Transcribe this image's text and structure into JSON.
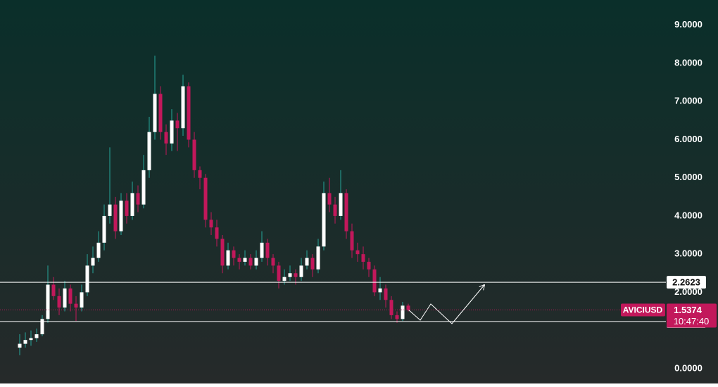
{
  "chart_data": {
    "type": "candlestick",
    "symbol": "AVICIUSD",
    "last_price": 1.5374,
    "countdown": "10:47:40",
    "levels": [
      2.2623,
      1.2349
    ],
    "up_color": "#ffffff",
    "down_color": "#c2185b",
    "wick_color": "#26a69a",
    "ylim": [
      -0.39,
      9.66
    ],
    "yticks": [
      {
        "value": 0,
        "label": "0.0000"
      },
      {
        "value": 2,
        "label": "2.0000"
      },
      {
        "value": 3,
        "label": "3.0000"
      },
      {
        "value": 4,
        "label": "4.0000"
      },
      {
        "value": 5,
        "label": "5.0000"
      },
      {
        "value": 6,
        "label": "6.0000"
      },
      {
        "value": 7,
        "label": "7.0000"
      },
      {
        "value": 8,
        "label": "8.0000"
      },
      {
        "value": 9,
        "label": "9.0000"
      }
    ],
    "ohlc": [
      [
        0.55,
        0.9,
        0.35,
        0.65
      ],
      [
        0.65,
        0.95,
        0.55,
        0.75
      ],
      [
        0.75,
        1.0,
        0.6,
        0.8
      ],
      [
        0.8,
        1.05,
        0.7,
        0.9
      ],
      [
        0.9,
        1.4,
        0.85,
        1.3
      ],
      [
        1.3,
        2.7,
        1.2,
        2.2
      ],
      [
        2.2,
        2.4,
        1.8,
        1.9
      ],
      [
        1.9,
        2.1,
        1.4,
        1.6
      ],
      [
        1.6,
        2.3,
        1.5,
        2.1
      ],
      [
        2.1,
        2.2,
        1.5,
        1.7
      ],
      [
        1.7,
        1.9,
        1.25,
        1.6
      ],
      [
        1.6,
        2.2,
        1.5,
        2.0
      ],
      [
        2.0,
        3.0,
        1.9,
        2.7
      ],
      [
        2.7,
        3.2,
        2.5,
        2.9
      ],
      [
        2.9,
        3.6,
        2.8,
        3.3
      ],
      [
        3.3,
        4.3,
        3.1,
        4.0
      ],
      [
        4.0,
        5.8,
        3.8,
        4.3
      ],
      [
        4.3,
        4.5,
        3.4,
        3.6
      ],
      [
        3.6,
        4.6,
        3.5,
        4.4
      ],
      [
        4.4,
        4.6,
        3.8,
        4.0
      ],
      [
        4.0,
        4.9,
        3.9,
        4.6
      ],
      [
        4.6,
        4.8,
        4.1,
        4.3
      ],
      [
        4.3,
        5.6,
        4.2,
        5.2
      ],
      [
        5.2,
        6.6,
        5.0,
        6.2
      ],
      [
        6.2,
        8.2,
        6.0,
        7.2
      ],
      [
        7.2,
        7.4,
        6.0,
        6.2
      ],
      [
        6.2,
        6.4,
        5.6,
        5.9
      ],
      [
        5.9,
        6.8,
        5.7,
        6.5
      ],
      [
        6.5,
        6.7,
        5.7,
        6.3
      ],
      [
        6.3,
        7.7,
        6.1,
        7.4
      ],
      [
        7.4,
        7.5,
        5.8,
        6.0
      ],
      [
        6.0,
        6.2,
        5.0,
        5.2
      ],
      [
        5.2,
        5.3,
        4.7,
        5.0
      ],
      [
        5.0,
        5.1,
        3.7,
        3.9
      ],
      [
        3.9,
        4.1,
        3.5,
        3.7
      ],
      [
        3.7,
        3.9,
        3.2,
        3.4
      ],
      [
        3.4,
        3.5,
        2.5,
        2.7
      ],
      [
        2.7,
        3.3,
        2.6,
        3.1
      ],
      [
        3.1,
        3.2,
        2.7,
        2.9
      ],
      [
        2.9,
        3.0,
        2.6,
        2.8
      ],
      [
        2.8,
        3.1,
        2.7,
        2.9
      ],
      [
        2.9,
        3.0,
        2.6,
        2.7
      ],
      [
        2.7,
        3.1,
        2.6,
        2.9
      ],
      [
        2.9,
        3.6,
        2.8,
        3.3
      ],
      [
        3.3,
        3.4,
        2.7,
        2.9
      ],
      [
        2.9,
        3.0,
        2.5,
        2.7
      ],
      [
        2.7,
        2.8,
        2.1,
        2.3
      ],
      [
        2.3,
        2.6,
        2.2,
        2.4
      ],
      [
        2.4,
        2.7,
        2.3,
        2.5
      ],
      [
        2.5,
        2.6,
        2.2,
        2.4
      ],
      [
        2.4,
        2.9,
        2.3,
        2.7
      ],
      [
        2.7,
        3.1,
        2.6,
        2.9
      ],
      [
        2.9,
        3.0,
        2.4,
        2.6
      ],
      [
        2.6,
        3.4,
        2.5,
        3.2
      ],
      [
        3.2,
        4.9,
        3.1,
        4.6
      ],
      [
        4.6,
        5.0,
        4.1,
        4.3
      ],
      [
        4.3,
        4.5,
        3.8,
        4.0
      ],
      [
        4.0,
        5.2,
        3.9,
        4.6
      ],
      [
        4.6,
        4.7,
        3.4,
        3.6
      ],
      [
        3.6,
        3.8,
        2.9,
        3.1
      ],
      [
        3.1,
        3.3,
        2.8,
        3.0
      ],
      [
        3.0,
        3.2,
        2.6,
        2.8
      ],
      [
        2.8,
        2.9,
        2.4,
        2.6
      ],
      [
        2.6,
        2.7,
        1.9,
        2.0
      ],
      [
        2.0,
        2.4,
        1.8,
        2.1
      ],
      [
        2.1,
        2.2,
        1.6,
        1.8
      ],
      [
        1.8,
        1.9,
        1.3,
        1.4
      ],
      [
        1.4,
        1.5,
        1.2,
        1.3
      ],
      [
        1.3,
        1.75,
        1.25,
        1.65
      ],
      [
        1.65,
        1.7,
        1.5,
        1.5374
      ]
    ]
  }
}
